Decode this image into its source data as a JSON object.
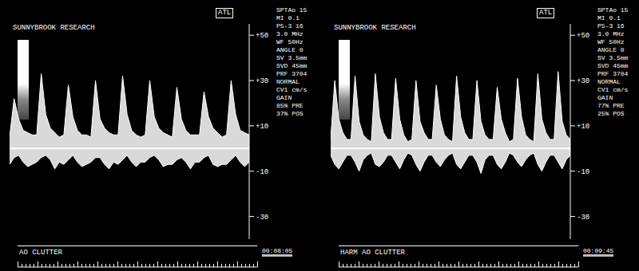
{
  "chart_data": [
    {
      "type": "area",
      "title": "AO CLUTTER",
      "subtitle": "SUNNYBROOK RESEARCH",
      "logo": "ATL",
      "time": "00:08:05",
      "annotations": [
        "SPTAo 15",
        "MI 0.1",
        "P5-3 16",
        "3.0 MHz",
        "WF 50Hz",
        "ANGLE 0",
        "SV 3.5mm",
        "SVD 45mm",
        "PRF 3704",
        "NORMAL",
        "CV1 cm/s",
        "GAIN",
        "85% PRE",
        "37% POS"
      ],
      "x": [
        0,
        1,
        2,
        3,
        4,
        5,
        6,
        7,
        8,
        9,
        10,
        11,
        12,
        13,
        14,
        15,
        16,
        17,
        18,
        19,
        20,
        21,
        22,
        23,
        24,
        25,
        26,
        27,
        28,
        29,
        30,
        31,
        32,
        33,
        34,
        35,
        36,
        37,
        38,
        39,
        40,
        41,
        42,
        43,
        44,
        45,
        46,
        47,
        48,
        49,
        50,
        51,
        52,
        53
      ],
      "xlim": [
        0,
        53
      ],
      "ylim": [
        -40,
        55
      ],
      "yticks": [
        {
          "value": 50,
          "label": "+50"
        },
        {
          "value": 30,
          "label": "+30"
        },
        {
          "value": 10,
          "label": "+10"
        },
        -10,
        -30
      ],
      "baseline": 0,
      "tick_labels": "y",
      "grid": false,
      "series": [
        {
          "color": "#ffffff",
          "values": [
            5,
            22,
            13,
            8,
            7,
            6,
            6,
            33,
            15,
            9,
            7,
            5,
            6,
            28,
            14,
            8,
            6,
            6,
            5,
            30,
            13,
            9,
            7,
            6,
            6,
            32,
            15,
            8,
            6,
            5,
            6,
            30,
            14,
            9,
            7,
            6,
            5,
            27,
            13,
            8,
            6,
            6,
            6,
            25,
            14,
            9,
            7,
            5,
            6,
            30,
            15,
            8,
            7,
            6
          ]
        },
        {
          "color": "#ffffff",
          "values": [
            -7,
            -4,
            -3,
            -6,
            -8,
            -7,
            -6,
            -4,
            -3,
            -5,
            -9,
            -6,
            -7,
            -5,
            -3,
            -6,
            -8,
            -7,
            -6,
            -4,
            -4,
            -7,
            -9,
            -6,
            -7,
            -5,
            -3,
            -6,
            -8,
            -6,
            -6,
            -4,
            -3,
            -5,
            -8,
            -7,
            -7,
            -5,
            -4,
            -6,
            -9,
            -6,
            -6,
            -4,
            -3,
            -7,
            -8,
            -7,
            -7,
            -5,
            -3,
            -6,
            -8,
            -6
          ]
        }
      ]
    },
    {
      "type": "area",
      "title": "HARM AO CLUTTER",
      "subtitle": "SUNNYBROOK RESEARCH",
      "logo": "ATL",
      "time": "00:09:45",
      "annotations": [
        "SPTAo 15",
        "MI 0.1",
        "P5-3 16",
        "3.0 MHz",
        "WF 50Hz",
        "ANGLE 0",
        "SV 3.5mm",
        "SVD 45mm",
        "PRF 3704",
        "NORMAL",
        "CV1 cm/s",
        "GAIN",
        "77% PRE",
        "25% POS"
      ],
      "x": [
        0,
        1,
        2,
        3,
        4,
        5,
        6,
        7,
        8,
        9,
        10,
        11,
        12,
        13,
        14,
        15,
        16,
        17,
        18,
        19,
        20,
        21,
        22,
        23,
        24,
        25,
        26,
        27,
        28,
        29,
        30,
        31,
        32,
        33,
        34,
        35,
        36,
        37,
        38,
        39,
        40,
        41,
        42,
        43,
        44,
        45,
        46,
        47,
        48,
        49,
        50,
        51,
        52,
        53,
        54,
        55,
        56,
        57,
        58,
        59
      ],
      "xlim": [
        0,
        59
      ],
      "ylim": [
        -40,
        55
      ],
      "yticks": [
        {
          "value": 50,
          "label": "+50"
        },
        {
          "value": 30,
          "label": "+30"
        },
        {
          "value": 10,
          "label": "+10"
        },
        -10,
        -30
      ],
      "baseline": 0,
      "tick_labels": "y",
      "grid": false,
      "series": [
        {
          "color": "#ffffff",
          "values": [
            4,
            30,
            13,
            7,
            4,
            4,
            32,
            12,
            6,
            4,
            3,
            33,
            14,
            7,
            4,
            4,
            31,
            13,
            6,
            3,
            4,
            30,
            12,
            7,
            4,
            4,
            28,
            13,
            6,
            4,
            3,
            32,
            14,
            7,
            4,
            4,
            30,
            12,
            6,
            4,
            4,
            27,
            13,
            7,
            3,
            4,
            31,
            14,
            6,
            4,
            3,
            33,
            13,
            7,
            4,
            4,
            34,
            12,
            6,
            4
          ]
        },
        {
          "color": "#ffffff",
          "values": [
            -3,
            -7,
            -9,
            -6,
            -3,
            -3,
            -6,
            -10,
            -5,
            -3,
            -2,
            -7,
            -8,
            -6,
            -3,
            -3,
            -6,
            -9,
            -5,
            -2,
            -3,
            -7,
            -10,
            -6,
            -3,
            -3,
            -6,
            -8,
            -5,
            -3,
            -2,
            -7,
            -9,
            -6,
            -3,
            -3,
            -6,
            -11,
            -5,
            -3,
            -3,
            -7,
            -9,
            -6,
            -2,
            -3,
            -6,
            -8,
            -5,
            -3,
            -2,
            -7,
            -10,
            -6,
            -3,
            -3,
            -6,
            -9,
            -5,
            -3
          ]
        }
      ]
    }
  ]
}
